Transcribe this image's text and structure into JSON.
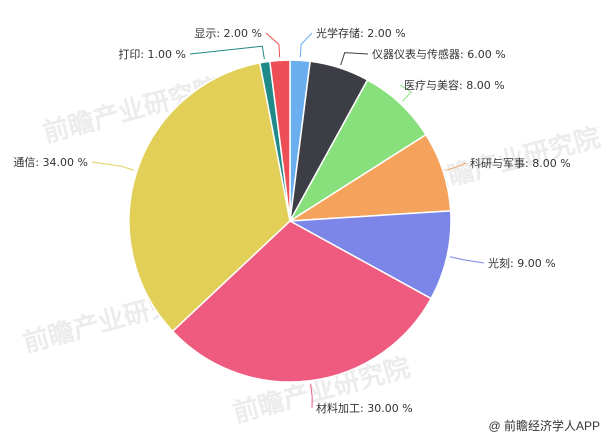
{
  "chart_data": {
    "type": "pie",
    "start_angle": "top, clockwise",
    "slices": [
      {
        "label": "光学存储",
        "value": 2.0,
        "color": "#6aaef0"
      },
      {
        "label": "仪器仪表与传感器",
        "value": 6.0,
        "color": "#3d3d45"
      },
      {
        "label": "医疗与美容",
        "value": 8.0,
        "color": "#88e07c"
      },
      {
        "label": "科研与军事",
        "value": 8.0,
        "color": "#f5a35c"
      },
      {
        "label": "光刻",
        "value": 9.0,
        "color": "#7c86e8"
      },
      {
        "label": "材料加工",
        "value": 30.0,
        "color": "#ee5b7f"
      },
      {
        "label": "通信",
        "value": 34.0,
        "color": "#e2cf57"
      },
      {
        "label": "打印",
        "value": 1.0,
        "color": "#1f8a87"
      },
      {
        "label": "显示",
        "value": 2.0,
        "color": "#ee4f56"
      }
    ],
    "value_format": "{label}: {value} %"
  },
  "watermark": "前瞻产业研究院",
  "credit": "@ 前瞻经济学人APP"
}
